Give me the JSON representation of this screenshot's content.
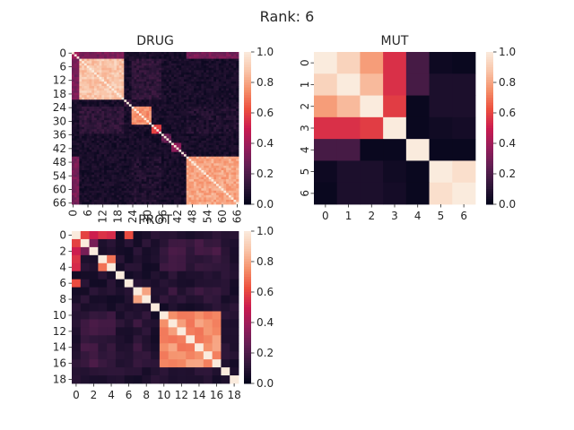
{
  "figure": {
    "suptitle": "Rank: 6"
  },
  "colormap": {
    "name": "rocket",
    "stops": [
      "#03051a",
      "#30173a",
      "#611f53",
      "#961c5b",
      "#cb1b4f",
      "#ed503e",
      "#f5906a",
      "#f9c5a9",
      "#faebdd"
    ]
  },
  "chart_data": [
    {
      "type": "heatmap",
      "title": "DRUG",
      "n": 67,
      "xticks": [
        "0",
        "6",
        "12",
        "18",
        "24",
        "30",
        "36",
        "42",
        "48",
        "54",
        "60",
        "66"
      ],
      "yticks": [
        "0",
        "6",
        "12",
        "18",
        "24",
        "30",
        "36",
        "42",
        "48",
        "54",
        "60",
        "66"
      ],
      "colorbar": {
        "min": 0.0,
        "max": 1.0,
        "ticks": [
          "0.0",
          "0.2",
          "0.4",
          "0.6",
          "0.8",
          "1.0"
        ]
      },
      "blocks": [
        {
          "start": 0,
          "end": 3,
          "value": 0.45
        },
        {
          "start": 3,
          "end": 21,
          "value": 0.88
        },
        {
          "start": 21,
          "end": 24,
          "value": 0.15
        },
        {
          "start": 24,
          "end": 32,
          "value": 0.75
        },
        {
          "start": 32,
          "end": 36,
          "value": 0.55
        },
        {
          "start": 36,
          "end": 40,
          "value": 0.25
        },
        {
          "start": 40,
          "end": 44,
          "value": 0.35
        },
        {
          "start": 44,
          "end": 46,
          "value": 0.2
        },
        {
          "start": 46,
          "end": 67,
          "value": 0.8
        }
      ],
      "background": 0.06,
      "diagonal": 1.0,
      "cross_links": [
        {
          "a": [
            3,
            21
          ],
          "b": [
            24,
            36
          ],
          "value": 0.12
        },
        {
          "a": [
            24,
            36
          ],
          "b": [
            46,
            67
          ],
          "value": 0.08
        },
        {
          "a": [
            0,
            3
          ],
          "b": [
            3,
            21
          ],
          "value": 0.3
        },
        {
          "a": [
            0,
            3
          ],
          "b": [
            46,
            67
          ],
          "value": 0.3
        }
      ]
    },
    {
      "type": "heatmap",
      "title": "MUT",
      "n": 7,
      "xticks": [
        "0",
        "1",
        "2",
        "3",
        "4",
        "5",
        "6"
      ],
      "yticks": [
        "0",
        "1",
        "2",
        "3",
        "4",
        "5",
        "6"
      ],
      "colorbar": {
        "min": 0.0,
        "max": 1.0,
        "ticks": [
          "0.0",
          "0.2",
          "0.4",
          "0.6",
          "0.8",
          "1.0"
        ]
      },
      "matrix": [
        [
          1.0,
          0.92,
          0.78,
          0.55,
          0.18,
          0.03,
          0.02
        ],
        [
          0.92,
          1.0,
          0.85,
          0.55,
          0.18,
          0.07,
          0.07
        ],
        [
          0.78,
          0.85,
          1.0,
          0.58,
          0.02,
          0.07,
          0.07
        ],
        [
          0.55,
          0.55,
          0.58,
          1.0,
          0.02,
          0.04,
          0.05
        ],
        [
          0.18,
          0.18,
          0.02,
          0.02,
          1.0,
          0.02,
          0.02
        ],
        [
          0.03,
          0.07,
          0.07,
          0.04,
          0.02,
          1.0,
          0.96
        ],
        [
          0.02,
          0.07,
          0.07,
          0.05,
          0.02,
          0.96,
          1.0
        ]
      ]
    },
    {
      "type": "heatmap",
      "title": "PROT",
      "n": 19,
      "xticks": [
        "0",
        "2",
        "4",
        "6",
        "8",
        "10",
        "12",
        "14",
        "16",
        "18"
      ],
      "yticks": [
        "0",
        "2",
        "4",
        "6",
        "8",
        "10",
        "12",
        "14",
        "16",
        "18"
      ],
      "colorbar": {
        "min": 0.0,
        "max": 1.0,
        "ticks": [
          "0.0",
          "0.2",
          "0.4",
          "0.6",
          "0.8",
          "1.0"
        ]
      },
      "blocks": [
        {
          "start": 0,
          "end": 1,
          "value": 1.0
        },
        {
          "start": 1,
          "end": 3,
          "value": 0.35
        },
        {
          "start": 3,
          "end": 5,
          "value": 0.75
        },
        {
          "start": 5,
          "end": 6,
          "value": 0.3
        },
        {
          "start": 6,
          "end": 7,
          "value": 1.0
        },
        {
          "start": 7,
          "end": 9,
          "value": 0.75
        },
        {
          "start": 9,
          "end": 10,
          "value": 0.2
        },
        {
          "start": 10,
          "end": 17,
          "value": 0.75
        },
        {
          "start": 17,
          "end": 18,
          "value": 0.3
        },
        {
          "start": 18,
          "end": 19,
          "value": 1.0
        }
      ],
      "background": 0.08,
      "diagonal": 1.0,
      "cross_links": [
        {
          "a": [
            0,
            1
          ],
          "b": [
            1,
            5
          ],
          "value": 0.55
        },
        {
          "a": [
            0,
            1
          ],
          "b": [
            6,
            7
          ],
          "value": 0.6
        },
        {
          "a": [
            1,
            5
          ],
          "b": [
            10,
            17
          ],
          "value": 0.15
        },
        {
          "a": [
            7,
            9
          ],
          "b": [
            10,
            17
          ],
          "value": 0.12
        }
      ]
    }
  ]
}
